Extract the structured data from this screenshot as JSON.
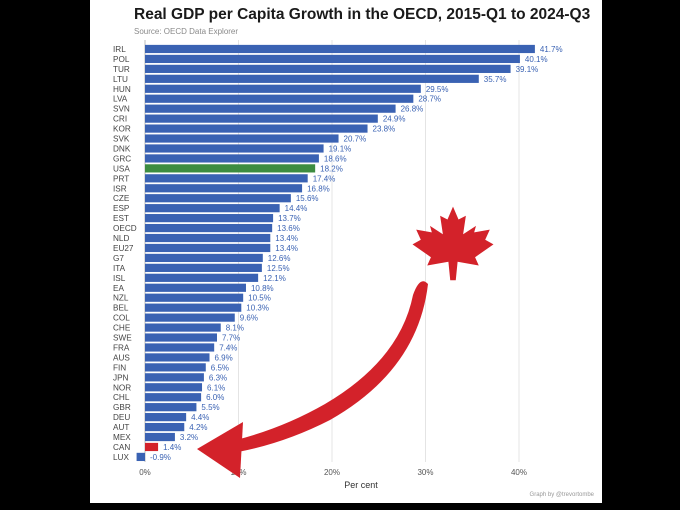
{
  "title": "Real GDP per Capita Growth in the OECD, 2015-Q1 to 2024-Q3",
  "source": "Source: OECD Data Explorer",
  "credit": "Graph by @trevortombe",
  "colors": {
    "bar": "#3a62b3",
    "highlight_usa": "#3d8c40",
    "highlight_can": "#d3222a",
    "arrow": "#d3222a",
    "value_label": "#3a62b3"
  },
  "icons": [
    "maple-leaf-icon",
    "curved-arrow-icon"
  ],
  "chart_data": {
    "type": "bar",
    "orientation": "horizontal",
    "title": "Real GDP per Capita Growth in the OECD, 2015-Q1 to 2024-Q3",
    "xlabel": "Per cent",
    "ylabel": "",
    "xlim": [
      -2,
      44
    ],
    "xticks": [
      "0%",
      "10%",
      "20%",
      "30%",
      "40%"
    ],
    "xtick_values": [
      0,
      10,
      20,
      30,
      40
    ],
    "grid": true,
    "categories": [
      "IRL",
      "POL",
      "TUR",
      "LTU",
      "HUN",
      "LVA",
      "SVN",
      "CRI",
      "KOR",
      "SVK",
      "DNK",
      "GRC",
      "USA",
      "PRT",
      "ISR",
      "CZE",
      "ESP",
      "EST",
      "OECD",
      "NLD",
      "EU27",
      "G7",
      "ITA",
      "ISL",
      "EA",
      "NZL",
      "BEL",
      "COL",
      "CHE",
      "SWE",
      "FRA",
      "AUS",
      "FIN",
      "JPN",
      "NOR",
      "CHL",
      "GBR",
      "DEU",
      "AUT",
      "MEX",
      "CAN",
      "LUX"
    ],
    "values": [
      41.7,
      40.1,
      39.1,
      35.7,
      29.5,
      28.7,
      26.8,
      24.9,
      23.8,
      20.7,
      19.1,
      18.6,
      18.2,
      17.4,
      16.8,
      15.6,
      14.4,
      13.7,
      13.6,
      13.4,
      13.4,
      12.6,
      12.5,
      12.1,
      10.8,
      10.5,
      10.3,
      9.6,
      8.1,
      7.7,
      7.4,
      6.9,
      6.5,
      6.3,
      6.1,
      6.0,
      5.5,
      4.4,
      4.2,
      3.2,
      1.4,
      -0.9
    ],
    "data_labels": [
      "41.7%",
      "40.1%",
      "39.1%",
      "35.7%",
      "29.5%",
      "28.7%",
      "26.8%",
      "24.9%",
      "23.8%",
      "20.7%",
      "19.1%",
      "18.6%",
      "18.2%",
      "17.4%",
      "16.8%",
      "15.6%",
      "14.4%",
      "13.7%",
      "13.6%",
      "13.4%",
      "13.4%",
      "12.6%",
      "12.5%",
      "12.1%",
      "10.8%",
      "10.5%",
      "10.3%",
      "9.6%",
      "8.1%",
      "7.7%",
      "7.4%",
      "6.9%",
      "6.5%",
      "6.3%",
      "6.1%",
      "6.0%",
      "5.5%",
      "4.4%",
      "4.2%",
      "3.2%",
      "1.4%",
      "-0.9%"
    ],
    "highlights": {
      "USA": "#3d8c40",
      "CAN": "#d3222a"
    }
  }
}
